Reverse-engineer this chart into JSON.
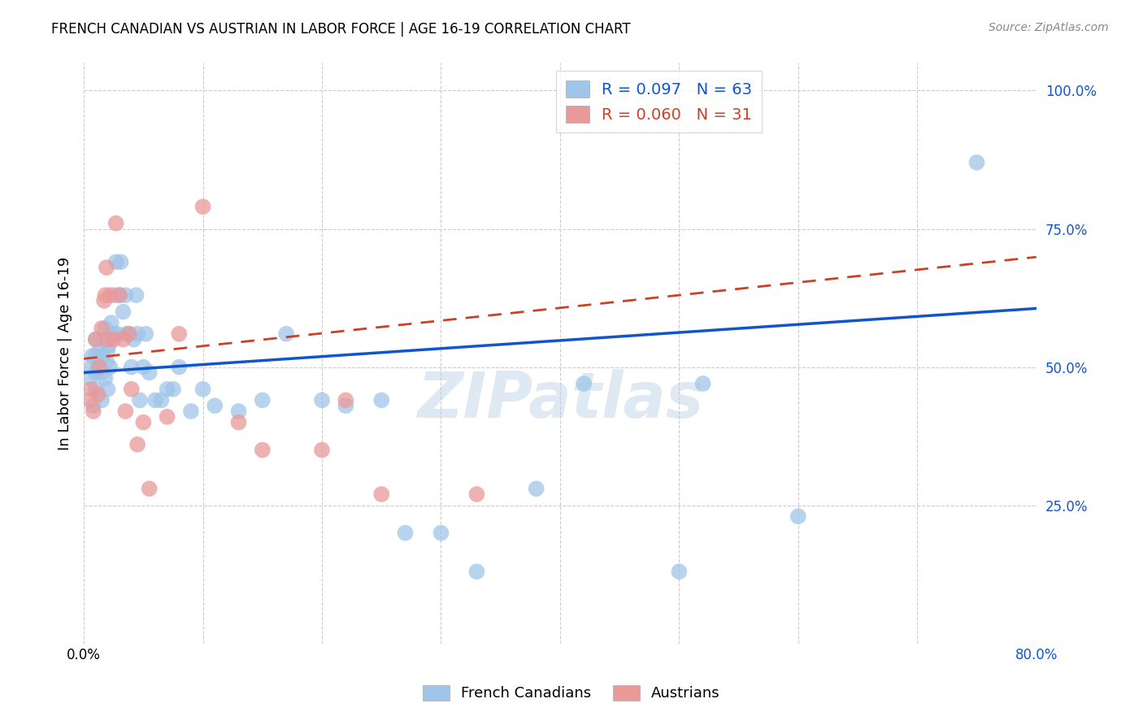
{
  "title": "FRENCH CANADIAN VS AUSTRIAN IN LABOR FORCE | AGE 16-19 CORRELATION CHART",
  "source": "Source: ZipAtlas.com",
  "ylabel": "In Labor Force | Age 16-19",
  "xlim": [
    0.0,
    0.8
  ],
  "ylim": [
    0.0,
    1.05
  ],
  "yticks": [
    0.0,
    0.25,
    0.5,
    0.75,
    1.0
  ],
  "ytick_labels": [
    "",
    "25.0%",
    "50.0%",
    "75.0%",
    "100.0%"
  ],
  "xticks": [
    0.0,
    0.1,
    0.2,
    0.3,
    0.4,
    0.5,
    0.6,
    0.7,
    0.8
  ],
  "blue_color": "#9fc5e8",
  "pink_color": "#ea9999",
  "blue_line_color": "#1155cc",
  "pink_line_color": "#cc4125",
  "legend_blue_label": "R = 0.097   N = 63",
  "legend_pink_label": "R = 0.060   N = 31",
  "watermark": "ZIPatlas",
  "blue_x": [
    0.005,
    0.006,
    0.007,
    0.008,
    0.01,
    0.01,
    0.01,
    0.01,
    0.012,
    0.013,
    0.015,
    0.015,
    0.016,
    0.017,
    0.018,
    0.018,
    0.019,
    0.02,
    0.02,
    0.021,
    0.022,
    0.023,
    0.025,
    0.026,
    0.027,
    0.028,
    0.03,
    0.031,
    0.033,
    0.035,
    0.036,
    0.038,
    0.04,
    0.042,
    0.044,
    0.045,
    0.047,
    0.05,
    0.052,
    0.055,
    0.06,
    0.065,
    0.07,
    0.075,
    0.08,
    0.09,
    0.1,
    0.11,
    0.13,
    0.15,
    0.17,
    0.2,
    0.22,
    0.25,
    0.27,
    0.3,
    0.33,
    0.38,
    0.42,
    0.5,
    0.52,
    0.6,
    0.75
  ],
  "blue_y": [
    0.48,
    0.5,
    0.52,
    0.43,
    0.46,
    0.49,
    0.52,
    0.55,
    0.5,
    0.53,
    0.44,
    0.49,
    0.52,
    0.55,
    0.48,
    0.57,
    0.51,
    0.53,
    0.46,
    0.54,
    0.5,
    0.58,
    0.56,
    0.63,
    0.69,
    0.56,
    0.63,
    0.69,
    0.6,
    0.63,
    0.56,
    0.56,
    0.5,
    0.55,
    0.63,
    0.56,
    0.44,
    0.5,
    0.56,
    0.49,
    0.44,
    0.44,
    0.46,
    0.46,
    0.5,
    0.42,
    0.46,
    0.43,
    0.42,
    0.44,
    0.56,
    0.44,
    0.43,
    0.44,
    0.2,
    0.2,
    0.13,
    0.28,
    0.47,
    0.13,
    0.47,
    0.23,
    0.87
  ],
  "pink_x": [
    0.005,
    0.006,
    0.008,
    0.01,
    0.012,
    0.013,
    0.015,
    0.017,
    0.018,
    0.019,
    0.02,
    0.022,
    0.025,
    0.027,
    0.03,
    0.033,
    0.035,
    0.038,
    0.04,
    0.045,
    0.05,
    0.055,
    0.07,
    0.08,
    0.1,
    0.13,
    0.15,
    0.2,
    0.22,
    0.25,
    0.33
  ],
  "pink_y": [
    0.44,
    0.46,
    0.42,
    0.55,
    0.45,
    0.5,
    0.57,
    0.62,
    0.63,
    0.68,
    0.55,
    0.63,
    0.55,
    0.76,
    0.63,
    0.55,
    0.42,
    0.56,
    0.46,
    0.36,
    0.4,
    0.28,
    0.41,
    0.56,
    0.79,
    0.4,
    0.35,
    0.35,
    0.44,
    0.27,
    0.27
  ],
  "blue_intercept": 0.49,
  "blue_slope": 0.145,
  "pink_intercept": 0.515,
  "pink_slope": 0.23
}
